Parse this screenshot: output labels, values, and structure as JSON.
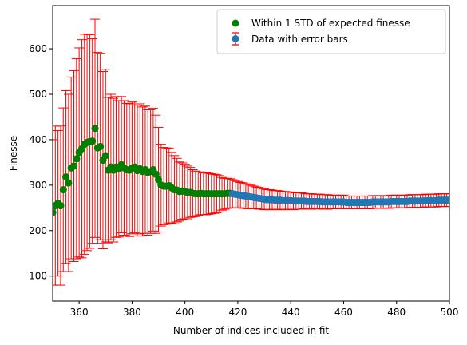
{
  "chart_data": {
    "type": "scatter",
    "xlabel": "Number of indices included in fit",
    "ylabel": "Finesse",
    "xlim": [
      350,
      500
    ],
    "ylim": [
      45,
      695
    ],
    "x_ticks": [
      360,
      380,
      400,
      420,
      440,
      460,
      480,
      500
    ],
    "y_ticks": [
      100,
      200,
      300,
      400,
      500,
      600
    ],
    "legend_position": "top-right",
    "legend": [
      {
        "label": "Within 1 STD of expected finesse",
        "marker": "green-circle"
      },
      {
        "label": "Data with error bars",
        "marker": "blue-circle-with-errorbar"
      }
    ],
    "colors": {
      "errorbar": "#ff0000",
      "within_std": "#008000",
      "data": "#1f77b4"
    },
    "series": [
      {
        "name": "Data with error bars",
        "x": [
          350,
          351,
          352,
          353,
          354,
          355,
          356,
          357,
          358,
          359,
          360,
          361,
          362,
          363,
          364,
          365,
          366,
          367,
          368,
          369,
          370,
          371,
          372,
          373,
          374,
          375,
          376,
          377,
          378,
          379,
          380,
          381,
          382,
          383,
          384,
          385,
          386,
          387,
          388,
          389,
          390,
          391,
          392,
          393,
          394,
          395,
          396,
          397,
          398,
          399,
          400,
          401,
          402,
          403,
          404,
          405,
          406,
          407,
          408,
          409,
          410,
          411,
          412,
          413,
          414,
          415,
          416,
          417,
          418,
          419,
          420,
          421,
          422,
          423,
          424,
          425,
          426,
          427,
          428,
          429,
          430,
          431,
          432,
          433,
          434,
          435,
          436,
          437,
          438,
          439,
          440,
          441,
          442,
          443,
          444,
          445,
          446,
          447,
          448,
          449,
          450,
          451,
          452,
          453,
          454,
          455,
          456,
          457,
          458,
          459,
          460,
          461,
          462,
          463,
          464,
          465,
          466,
          467,
          468,
          469,
          470,
          471,
          472,
          473,
          474,
          475,
          476,
          477,
          478,
          479,
          480,
          481,
          482,
          483,
          484,
          485,
          486,
          487,
          488,
          489,
          490,
          491,
          492,
          493,
          494,
          495,
          496,
          497,
          498,
          499,
          500
        ],
        "y": [
          240,
          255,
          260,
          255,
          290,
          318,
          305,
          338,
          342,
          358,
          372,
          380,
          390,
          394,
          396,
          397,
          425,
          382,
          385,
          355,
          365,
          333,
          340,
          333,
          340,
          336,
          345,
          338,
          334,
          333,
          338,
          340,
          332,
          336,
          330,
          334,
          328,
          330,
          334,
          324,
          312,
          300,
          298,
          298,
          299,
          294,
          290,
          289,
          286,
          287,
          286,
          284,
          284,
          282,
          281,
          281,
          282,
          281,
          281,
          281,
          281,
          281,
          281,
          281,
          281,
          281,
          282,
          282,
          281,
          280,
          279,
          278,
          277,
          276,
          275,
          274,
          273,
          272,
          271,
          270,
          269,
          268,
          268,
          268,
          267,
          267,
          267,
          266,
          266,
          266,
          266,
          265,
          265,
          265,
          265,
          265,
          264,
          264,
          264,
          264,
          264,
          264,
          263,
          263,
          263,
          263,
          263,
          263,
          263,
          263,
          263,
          262,
          262,
          262,
          262,
          262,
          262,
          262,
          262,
          262,
          262,
          263,
          263,
          263,
          263,
          263,
          263,
          263,
          264,
          264,
          264,
          264,
          264,
          264,
          264,
          265,
          265,
          265,
          265,
          265,
          265,
          266,
          266,
          266,
          266,
          266,
          267,
          267,
          267,
          267,
          267
        ],
        "err": [
          160,
          175,
          160,
          175,
          180,
          190,
          195,
          200,
          210,
          220,
          230,
          240,
          242,
          238,
          235,
          225,
          240,
          210,
          205,
          195,
          190,
          160,
          160,
          158,
          155,
          150,
          150,
          148,
          146,
          146,
          145,
          145,
          144,
          143,
          142,
          140,
          138,
          136,
          135,
          130,
          115,
          90,
          85,
          84,
          82,
          78,
          75,
          70,
          65,
          62,
          60,
          58,
          55,
          52,
          50,
          48,
          47,
          46,
          46,
          45,
          44,
          43,
          42,
          40,
          36,
          34,
          33,
          32,
          31,
          30,
          29,
          28,
          28,
          27,
          27,
          26,
          25,
          24,
          24,
          23,
          23,
          22,
          22,
          21,
          21,
          21,
          20,
          20,
          20,
          19,
          19,
          19,
          18,
          18,
          18,
          17,
          17,
          17,
          17,
          16,
          16,
          16,
          16,
          16,
          16,
          15,
          15,
          15,
          15,
          15,
          15,
          14,
          14,
          14,
          14,
          14,
          14,
          14,
          14,
          14,
          14,
          14,
          14,
          14,
          14,
          14,
          14,
          14,
          14,
          14,
          14,
          14,
          14,
          14,
          14,
          14,
          14,
          14,
          14,
          14,
          14,
          14,
          14,
          14,
          14,
          14,
          14,
          14,
          14,
          14,
          14
        ]
      },
      {
        "name": "Within 1 STD of expected finesse",
        "x_max": 417
      }
    ]
  }
}
